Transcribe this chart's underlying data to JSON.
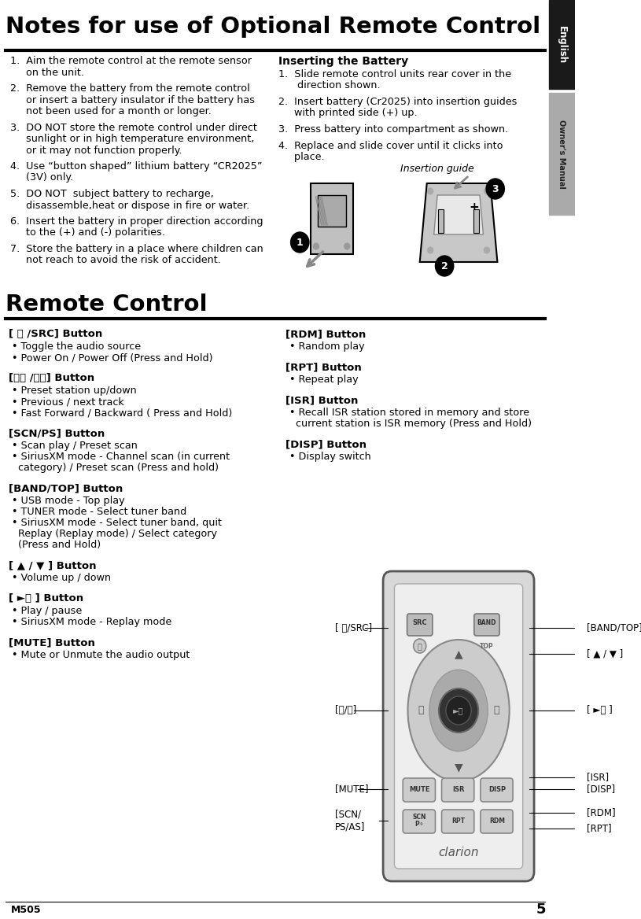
{
  "page_bg": "#ffffff",
  "sidebar_black_bg": "#1a1a1a",
  "sidebar_gray_bg": "#aaaaaa",
  "title1": "Notes for use of Optional Remote Control",
  "title2": "Remote Control",
  "section1_title": "Inserting the Battery",
  "left_col_items": [
    [
      "1.  Aim the remote control at the remote sensor",
      "     on the unit."
    ],
    [
      "2.  Remove the battery from the remote control",
      "     or insert a battery insulator if the battery has",
      "     not been used for a month or longer."
    ],
    [
      "3.  DO NOT store the remote control under direct",
      "     sunlight or in high temperature environment,",
      "     or it may not function properly."
    ],
    [
      "4.  Use “button shaped” lithium battery “CR2025”",
      "     (3V) only."
    ],
    [
      "5.  DO NOT  subject battery to recharge,",
      "     disassemble,heat or dispose in fire or water."
    ],
    [
      "6.  Insert the battery in proper direction according",
      "     to the (+) and (-) polarities."
    ],
    [
      "7.  Store the battery in a place where children can",
      "     not reach to avoid the risk of accident."
    ]
  ],
  "right_col_items": [
    [
      "1.  Slide remote control units rear cover in the",
      "      direction shown."
    ],
    [
      "2.  Insert battery (Cr2025) into insertion guides",
      "     with printed side (+) up."
    ],
    [
      "3.  Press battery into compartment as shown."
    ],
    [
      "4.  Replace and slide cover until it clicks into",
      "     place."
    ]
  ],
  "insertion_guide_label": "Insertion guide",
  "rc_buttons_left": [
    {
      "header": "[ ⏻ /SRC] Button",
      "bullets": [
        "Toggle the audio source",
        "Power On / Power Off (Press and Hold)"
      ],
      "extra_gap": true
    },
    {
      "header": "[⏮⏮ /⏭⏭] Button",
      "bullets": [
        "Preset station up/down",
        "Previous / next track",
        "Fast Forward / Backward ( Press and Hold)"
      ],
      "extra_gap": true
    },
    {
      "header": "[SCN/PS] Button",
      "bullets": [
        "Scan play / Preset scan",
        "SiriusXM mode - Channel scan (in current",
        "   category) / Preset scan (Press and hold)"
      ],
      "bold_word": "SiriusXM",
      "extra_gap": true
    },
    {
      "header": "[BAND/TOP] Button",
      "bullets": [
        "USB mode - Top play",
        "TUNER mode - Select tuner band",
        "SiriusXM mode - Select tuner band, quit",
        "   Replay (Replay mode) / Select category",
        "   (Press and Hold)"
      ],
      "bold_words": [
        "USB",
        "TUNER",
        "SiriusXM"
      ],
      "extra_gap": true
    },
    {
      "header": "[ ▲ / ▼ ] Button",
      "bullets": [
        "Volume up / down"
      ],
      "extra_gap": true
    },
    {
      "header": "[ ►⏸ ] Button",
      "bullets": [
        "Play / pause",
        "SiriusXM mode - Replay mode"
      ],
      "bold_word": "SiriusXM",
      "extra_gap": true
    },
    {
      "header": "[MUTE] Button",
      "bullets": [
        "Mute or Unmute the audio output"
      ],
      "extra_gap": false
    }
  ],
  "rc_buttons_right": [
    {
      "header": "[RDM] Button",
      "bullets": [
        "Random play"
      ],
      "extra_gap": true
    },
    {
      "header": "[RPT] Button",
      "bullets": [
        "Repeat play"
      ],
      "extra_gap": true
    },
    {
      "header": "[ISR] Button",
      "bullets": [
        "Recall ISR station stored in memory and store",
        "   current station is ISR memory (Press and Hold)"
      ],
      "extra_gap": true
    },
    {
      "header": "[DISP] Button",
      "bullets": [
        "Display switch"
      ],
      "extra_gap": false
    }
  ],
  "footer_model": "M505",
  "footer_page": "5",
  "rc_body_color": "#c8c8c8",
  "rc_border_color": "#555555",
  "rc_inner_color": "#dddddd",
  "rc_dark_color": "#444444",
  "rc_btn_color": "#999999"
}
